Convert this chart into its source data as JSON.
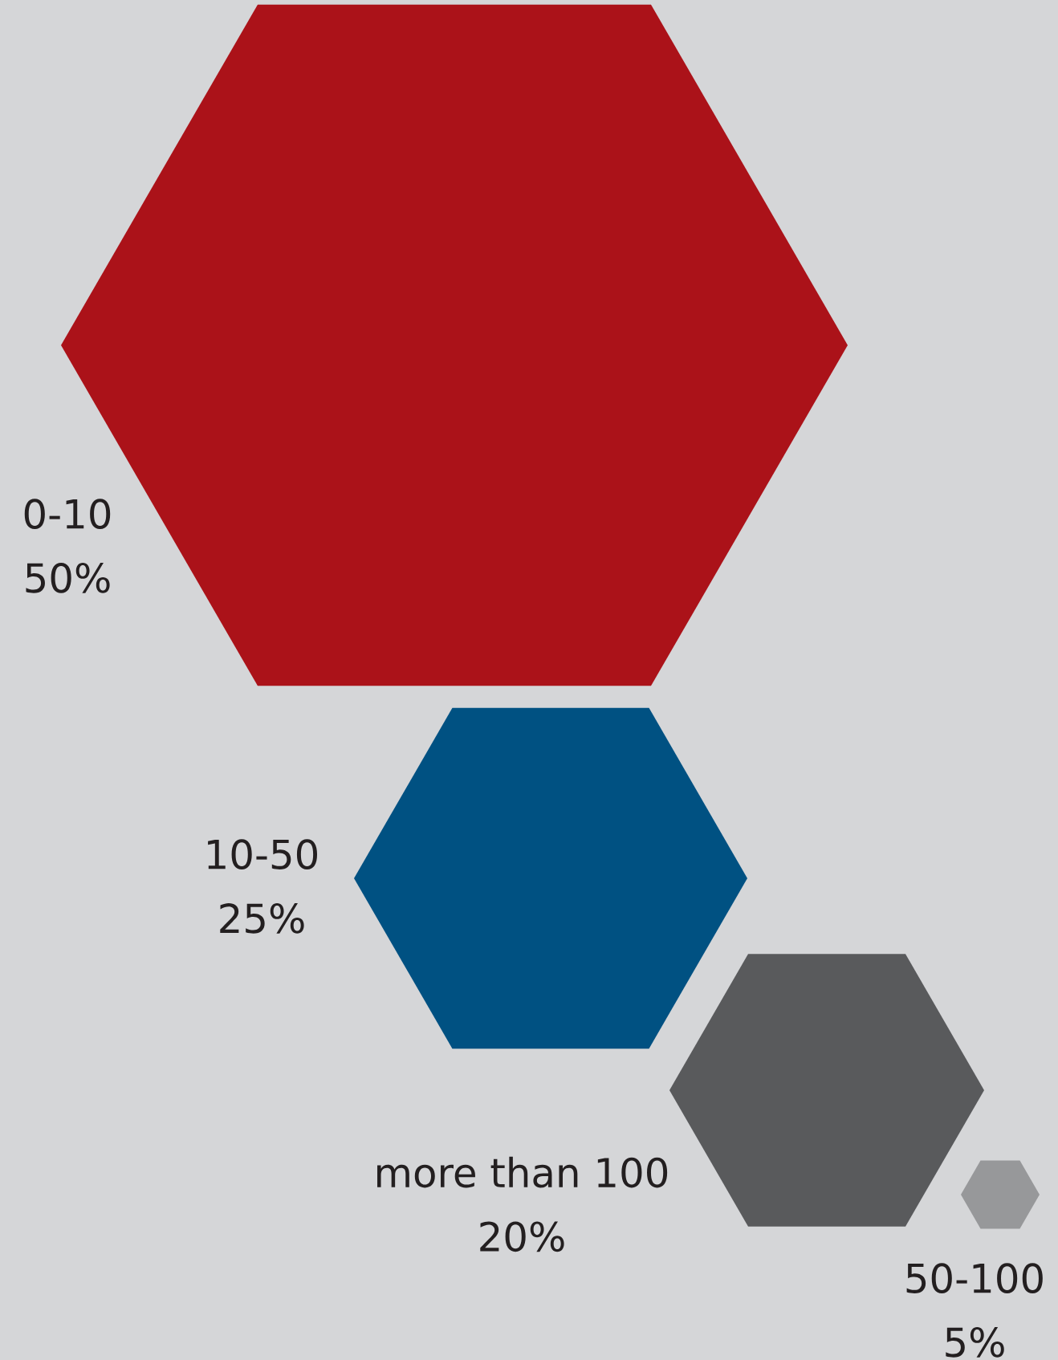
{
  "chart_data": {
    "type": "other",
    "categories": [
      "0-10",
      "10-50",
      "more than 100",
      "50-100"
    ],
    "values": [
      50,
      25,
      20,
      5
    ],
    "value_labels": [
      "50%",
      "25%",
      "20%",
      "5%"
    ],
    "colors": [
      "#ab1219",
      "#005182",
      "#595a5c",
      "#97989a"
    ]
  }
}
